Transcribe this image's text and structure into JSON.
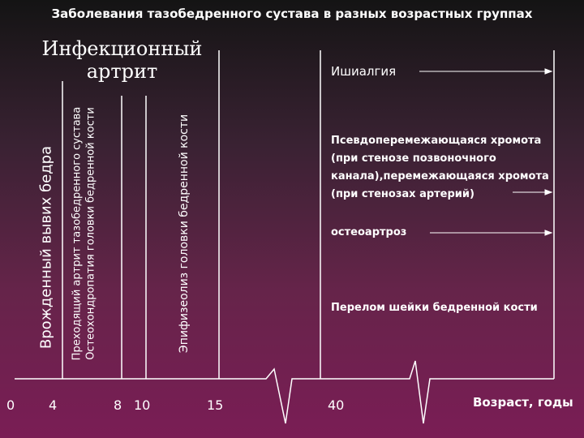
{
  "title": "Заболевания тазобедренного сустава в разных возрастных группах",
  "heading": "Инфекционный артрит",
  "vertical_labels": {
    "congenital": "Врожденный вывих бедра",
    "transient_line1": "Преходящий артрит тазобедренного сустава",
    "transient_line2": "Остеохондропатия головки бедренной кости",
    "epiphysiolysis": "Эпифизеолиз головки бедренной кости"
  },
  "right_labels": {
    "sciatica": "Ишиалгия",
    "claudication": "Псевдоперемежающаяся хромота (при стенозе позвоночного канала),перемежающаяся хромота (при стенозах артерий)",
    "osteoarthrosis": "остеоартроз",
    "fracture": "Перелом шейки бедренной кости"
  },
  "axis": {
    "ticks": [
      "0",
      "4",
      "8",
      "10",
      "15",
      "40"
    ],
    "label": "Возраст, годы"
  }
}
